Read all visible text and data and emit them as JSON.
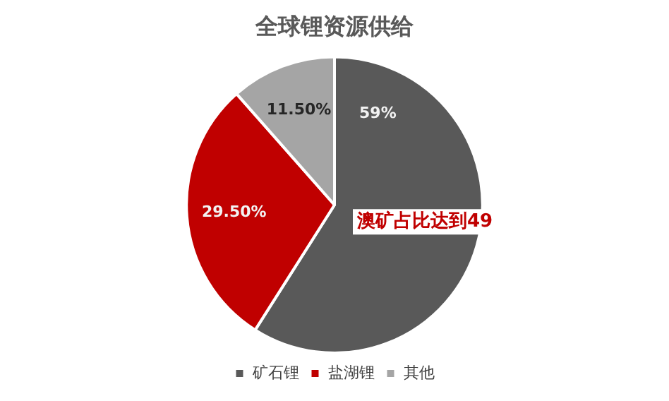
{
  "chart_data": {
    "type": "pie",
    "title": "全球锂资源供给",
    "categories": [
      "矿石锂",
      "盐湖锂",
      "其他"
    ],
    "values": [
      59,
      29.5,
      11.5
    ],
    "colors": [
      "#595959",
      "#c00000",
      "#a5a5a5"
    ],
    "value_labels": [
      "59%",
      "29.50%",
      "11.50%"
    ],
    "annotations": [
      "澳矿占比达到49"
    ],
    "legend": "bottom"
  }
}
